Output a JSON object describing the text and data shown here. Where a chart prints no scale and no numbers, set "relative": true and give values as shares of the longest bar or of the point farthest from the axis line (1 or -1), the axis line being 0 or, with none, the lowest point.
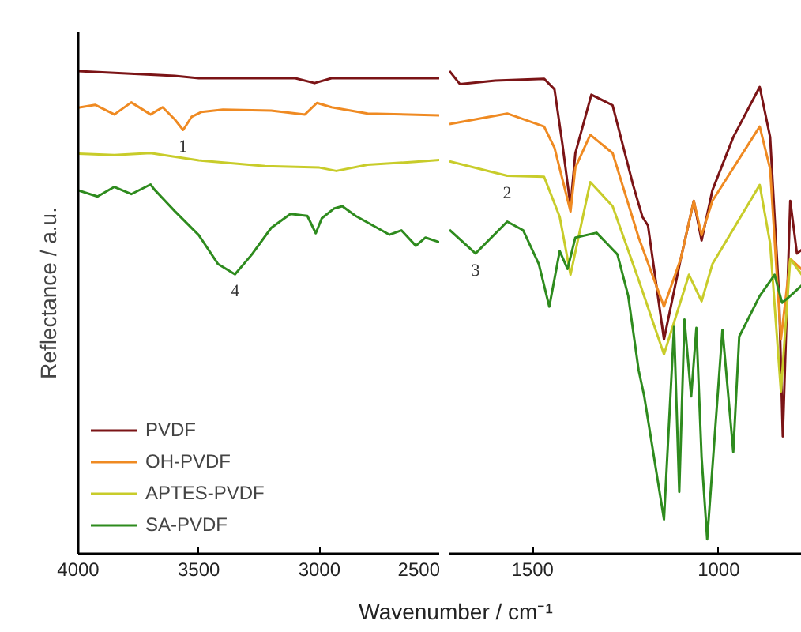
{
  "chart_data": [
    {
      "type": "line",
      "relative": true,
      "ylabel": "Reflectance / a.u.",
      "xlabel": "Wavenumber / cm⁻¹",
      "xlim": [
        4000,
        2500
      ],
      "xticks": [
        4000,
        3500,
        3000,
        2500
      ],
      "legend": "bottom left",
      "grid": false,
      "series": [
        {
          "name": "PVDF",
          "color": "#7b1416",
          "x": [
            4000,
            3800,
            3600,
            3500,
            3300,
            3100,
            3020,
            2950,
            2700,
            2500
          ],
          "values": [
            1.0,
            0.995,
            0.99,
            0.985,
            0.985,
            0.985,
            0.975,
            0.985,
            0.985,
            0.985
          ]
        },
        {
          "name": "OH-PVDF",
          "color": "#ef8a22",
          "x": [
            4000,
            3930,
            3850,
            3780,
            3700,
            3650,
            3600,
            3565,
            3530,
            3490,
            3400,
            3200,
            3060,
            3010,
            2950,
            2800,
            2500
          ],
          "values": [
            0.924,
            0.93,
            0.91,
            0.935,
            0.91,
            0.925,
            0.9,
            0.878,
            0.905,
            0.915,
            0.92,
            0.918,
            0.91,
            0.934,
            0.925,
            0.912,
            0.908
          ]
        },
        {
          "name": "APTES-PVDF",
          "color": "#c8cc2a",
          "x": [
            4000,
            3850,
            3700,
            3500,
            3225,
            3000,
            2930,
            2800,
            2600,
            2500
          ],
          "values": [
            0.829,
            0.826,
            0.83,
            0.815,
            0.803,
            0.8,
            0.793,
            0.806,
            0.812,
            0.816
          ]
        },
        {
          "name": "SA-PVDF",
          "color": "#2e8b1e",
          "x": [
            4000,
            3920,
            3850,
            3780,
            3700,
            3685,
            3600,
            3500,
            3420,
            3350,
            3280,
            3200,
            3120,
            3050,
            3015,
            2990,
            2940,
            2905,
            2850,
            2760,
            2710,
            2660,
            2600,
            2560,
            2500
          ],
          "values": [
            0.753,
            0.74,
            0.76,
            0.745,
            0.765,
            0.755,
            0.71,
            0.66,
            0.6,
            0.579,
            0.62,
            0.675,
            0.704,
            0.7,
            0.664,
            0.695,
            0.715,
            0.72,
            0.7,
            0.675,
            0.661,
            0.67,
            0.638,
            0.655,
            0.645
          ]
        }
      ],
      "annotations": [
        {
          "text": "1",
          "x": 3565,
          "y": 0.878
        },
        {
          "text": "4",
          "x": 3350,
          "y": 0.579
        }
      ]
    },
    {
      "type": "line",
      "relative": true,
      "xlim": [
        1723,
        777
      ],
      "xticks": [
        1500,
        1000
      ],
      "grid": false,
      "series": [
        {
          "color": "#7b1416",
          "x": [
            1723,
            1695,
            1600,
            1469,
            1441,
            1420,
            1398,
            1385,
            1342,
            1285,
            1230,
            1205,
            1190,
            1147,
            1102,
            1067,
            1046,
            1017,
            961,
            890,
            862,
            838,
            828,
            808,
            790,
            777
          ],
          "values": [
            1.0,
            0.973,
            0.98,
            0.984,
            0.962,
            0.85,
            0.72,
            0.83,
            0.951,
            0.929,
            0.764,
            0.698,
            0.68,
            0.444,
            0.611,
            0.731,
            0.649,
            0.753,
            0.863,
            0.967,
            0.863,
            0.534,
            0.243,
            0.731,
            0.622,
            0.63
          ]
        },
        {
          "color": "#ef8a22",
          "x": [
            1723,
            1568,
            1469,
            1441,
            1398,
            1385,
            1345,
            1285,
            1215,
            1147,
            1102,
            1067,
            1046,
            1017,
            890,
            862,
            833,
            808,
            777
          ],
          "values": [
            0.89,
            0.912,
            0.885,
            0.841,
            0.709,
            0.8,
            0.868,
            0.83,
            0.655,
            0.512,
            0.611,
            0.731,
            0.66,
            0.731,
            0.885,
            0.797,
            0.444,
            0.611,
            0.589
          ]
        },
        {
          "color": "#c8cc2a",
          "x": [
            1723,
            1568,
            1469,
            1427,
            1398,
            1345,
            1285,
            1215,
            1147,
            1080,
            1046,
            1017,
            890,
            862,
            833,
            808,
            777
          ],
          "values": [
            0.813,
            0.783,
            0.781,
            0.698,
            0.578,
            0.77,
            0.72,
            0.567,
            0.413,
            0.578,
            0.523,
            0.6,
            0.764,
            0.643,
            0.336,
            0.611,
            0.578
          ]
        },
        {
          "color": "#2e8b1e",
          "x": [
            1723,
            1653,
            1568,
            1525,
            1483,
            1455,
            1427,
            1406,
            1385,
            1328,
            1272,
            1243,
            1215,
            1200,
            1147,
            1120,
            1106,
            1092,
            1074,
            1060,
            1046,
            1031,
            990,
            961,
            945,
            890,
            850,
            830,
            808,
            777
          ],
          "values": [
            0.671,
            0.622,
            0.688,
            0.67,
            0.6,
            0.512,
            0.627,
            0.59,
            0.655,
            0.665,
            0.62,
            0.534,
            0.38,
            0.326,
            0.071,
            0.47,
            0.128,
            0.485,
            0.326,
            0.468,
            0.2,
            0.03,
            0.464,
            0.211,
            0.45,
            0.534,
            0.578,
            0.52,
            0.534,
            0.556
          ]
        }
      ],
      "annotations": [
        {
          "text": "2",
          "x": 1568,
          "y": 0.783
        },
        {
          "text": "3",
          "x": 1653,
          "y": 0.622
        }
      ]
    }
  ]
}
